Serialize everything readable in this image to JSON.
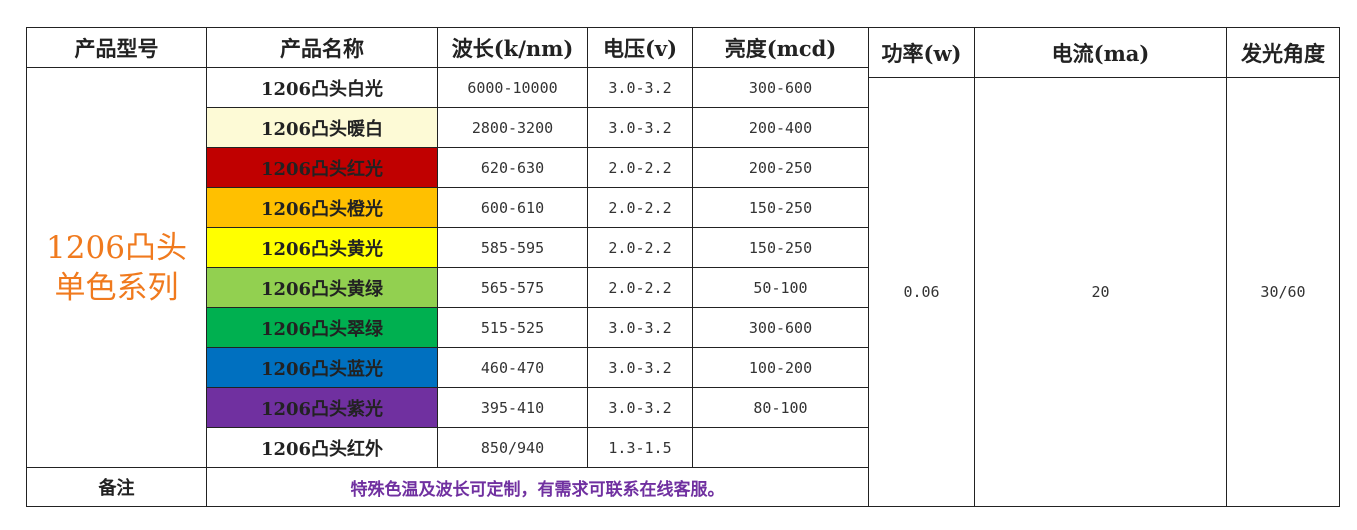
{
  "headers": [
    "产品型号",
    "产品名称",
    "波长(k/nm)",
    "电压(v)",
    "亮度(mcd)",
    "功率(w)",
    "电流(ma)",
    "发光角度"
  ],
  "series_label_line1": "1206凸头",
  "series_label_line2": "单色系列",
  "rows": [
    {
      "name": "1206凸头白光",
      "wavelength": "6000-10000",
      "voltage": "3.0-3.2",
      "brightness": "300-600",
      "color": "#ffffff",
      "text_color": "#222222"
    },
    {
      "name": "1206凸头暖白",
      "wavelength": "2800-3200",
      "voltage": "3.0-3.2",
      "brightness": "200-400",
      "color": "#fdfad6",
      "text_color": "#222222"
    },
    {
      "name": "1206凸头红光",
      "wavelength": "620-630",
      "voltage": "2.0-2.2",
      "brightness": "200-250",
      "color": "#c00000",
      "text_color": "#222222"
    },
    {
      "name": "1206凸头橙光",
      "wavelength": "600-610",
      "voltage": "2.0-2.2",
      "brightness": "150-250",
      "color": "#ffc000",
      "text_color": "#222222"
    },
    {
      "name": "1206凸头黄光",
      "wavelength": "585-595",
      "voltage": "2.0-2.2",
      "brightness": "150-250",
      "color": "#ffff00",
      "text_color": "#222222"
    },
    {
      "name": "1206凸头黄绿",
      "wavelength": "565-575",
      "voltage": "2.0-2.2",
      "brightness": "50-100",
      "color": "#92d050",
      "text_color": "#222222"
    },
    {
      "name": "1206凸头翠绿",
      "wavelength": "515-525",
      "voltage": "3.0-3.2",
      "brightness": "300-600",
      "color": "#00b050",
      "text_color": "#222222"
    },
    {
      "name": "1206凸头蓝光",
      "wavelength": "460-470",
      "voltage": "3.0-3.2",
      "brightness": "100-200",
      "color": "#0070c0",
      "text_color": "#222222"
    },
    {
      "name": "1206凸头紫光",
      "wavelength": "395-410",
      "voltage": "3.0-3.2",
      "brightness": "80-100",
      "color": "#7030a0",
      "text_color": "#222222"
    },
    {
      "name": "1206凸头红外",
      "wavelength": "850/940",
      "voltage": "1.3-1.5",
      "brightness": "",
      "color": "#ffffff",
      "text_color": "#222222"
    }
  ],
  "power": "0.06",
  "current": "20",
  "angle": "30/60",
  "note_label": "备注",
  "note_text": "特殊色温及波长可定制，有需求可联系在线客服。"
}
